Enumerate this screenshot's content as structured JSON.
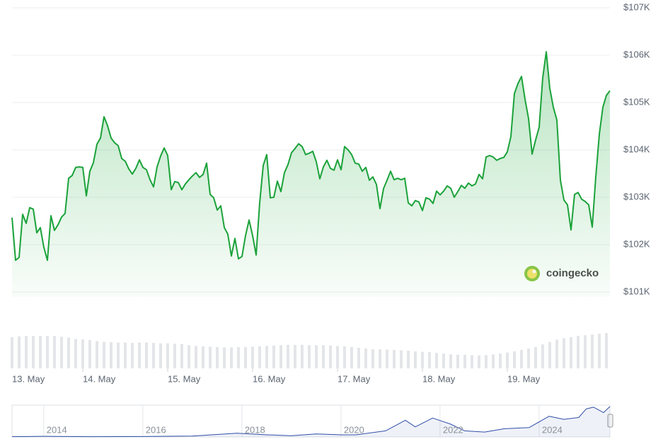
{
  "chart_data": [
    {
      "type": "line",
      "watermark": "coingecko",
      "color": "#1ba23a",
      "fill": "#34b24e",
      "grid": true,
      "xlim": [
        4,
        173
      ],
      "xticks": [
        {
          "value": 0,
          "label": "13. May"
        },
        {
          "value": 24,
          "label": "14. May"
        },
        {
          "value": 48,
          "label": "15. May"
        },
        {
          "value": 72,
          "label": "16. May"
        },
        {
          "value": 96,
          "label": "17. May"
        },
        {
          "value": 120,
          "label": "18. May"
        },
        {
          "value": 144,
          "label": "19. May"
        }
      ],
      "ylim": [
        101000,
        107000
      ],
      "yticks": [
        {
          "value": 101000,
          "label": "$101K"
        },
        {
          "value": 102000,
          "label": "$102K"
        },
        {
          "value": 103000,
          "label": "$103K"
        },
        {
          "value": 104000,
          "label": "$104K"
        },
        {
          "value": 105000,
          "label": "$105K"
        },
        {
          "value": 106000,
          "label": "$106K"
        },
        {
          "value": 107000,
          "label": "$107K"
        }
      ],
      "x": [
        4,
        5,
        6,
        7,
        8,
        9,
        10,
        11,
        12,
        13,
        14,
        15,
        16,
        17,
        18,
        19,
        20,
        21,
        22,
        23,
        24,
        25,
        26,
        27,
        28,
        29,
        30,
        31,
        32,
        33,
        34,
        35,
        36,
        37,
        38,
        39,
        40,
        41,
        42,
        43,
        44,
        45,
        46,
        47,
        48,
        49,
        50,
        51,
        52,
        53,
        54,
        55,
        56,
        57,
        58,
        59,
        60,
        61,
        62,
        63,
        64,
        65,
        66,
        67,
        68,
        69,
        70,
        71,
        72,
        73,
        74,
        75,
        76,
        77,
        78,
        79,
        80,
        81,
        82,
        83,
        84,
        85,
        86,
        87,
        88,
        89,
        90,
        91,
        92,
        93,
        94,
        95,
        96,
        97,
        98,
        99,
        100,
        101,
        102,
        103,
        104,
        105,
        106,
        107,
        108,
        109,
        110,
        111,
        112,
        113,
        114,
        115,
        116,
        117,
        118,
        119,
        120,
        121,
        122,
        123,
        124,
        125,
        126,
        127,
        128,
        129,
        130,
        131,
        132,
        133,
        134,
        135,
        136,
        137,
        138,
        139,
        140,
        141,
        142,
        143,
        144,
        145,
        146,
        147,
        148,
        149,
        150,
        151,
        152,
        153,
        154,
        155,
        156,
        157,
        158,
        159,
        160,
        161,
        162,
        163,
        164,
        165,
        166,
        167,
        168,
        169,
        170,
        171,
        172,
        173
      ],
      "values": [
        102570,
        101670,
        101730,
        102640,
        102450,
        102780,
        102750,
        102250,
        102360,
        101940,
        101670,
        102610,
        102300,
        102420,
        102580,
        102660,
        103400,
        103460,
        103630,
        103640,
        103630,
        103030,
        103550,
        103730,
        104120,
        104250,
        104700,
        104510,
        104250,
        104150,
        104090,
        103820,
        103760,
        103600,
        103490,
        103610,
        103790,
        103630,
        103580,
        103370,
        103220,
        103640,
        103870,
        104040,
        103880,
        103160,
        103330,
        103310,
        103160,
        103280,
        103370,
        103450,
        103520,
        103420,
        103480,
        103720,
        103060,
        102990,
        102730,
        102820,
        102360,
        102220,
        101760,
        102130,
        101700,
        101750,
        102190,
        102520,
        102190,
        101780,
        102880,
        103670,
        103900,
        102990,
        103000,
        103340,
        103120,
        103520,
        103690,
        103940,
        104030,
        104130,
        104070,
        103900,
        103930,
        103970,
        103750,
        103390,
        103640,
        103780,
        103610,
        103570,
        103790,
        103580,
        104070,
        104000,
        103900,
        103720,
        103700,
        103550,
        103630,
        103360,
        103430,
        103270,
        102760,
        103180,
        103360,
        103550,
        103370,
        103400,
        103370,
        103400,
        102880,
        102820,
        102930,
        102900,
        102720,
        102990,
        102960,
        102870,
        103130,
        103050,
        103130,
        103240,
        103190,
        103000,
        103120,
        103250,
        103190,
        103300,
        103240,
        103280,
        103480,
        103390,
        103850,
        103880,
        103850,
        103780,
        103820,
        103840,
        103960,
        104280,
        105190,
        105400,
        105550,
        105070,
        104660,
        103910,
        104210,
        104480,
        105520,
        106070,
        105300,
        104900,
        104630,
        103360,
        102940,
        102840,
        102310,
        103060,
        103100,
        102960,
        102910,
        102840,
        102370,
        103430,
        104330,
        104900,
        105150,
        105250
      ]
    },
    {
      "type": "bar",
      "color": "#e3e5e8",
      "xlim": [
        4,
        173
      ],
      "ylim": [
        0,
        100
      ],
      "x": [
        4,
        6,
        8,
        10,
        12,
        14,
        16,
        18,
        20,
        22,
        24,
        26,
        28,
        30,
        32,
        34,
        36,
        38,
        40,
        42,
        44,
        46,
        48,
        50,
        52,
        54,
        56,
        58,
        60,
        62,
        64,
        66,
        68,
        70,
        72,
        74,
        76,
        78,
        80,
        82,
        84,
        86,
        88,
        90,
        92,
        94,
        96,
        98,
        100,
        102,
        104,
        106,
        108,
        110,
        112,
        114,
        116,
        118,
        120,
        122,
        124,
        126,
        128,
        130,
        132,
        134,
        136,
        138,
        140,
        142,
        144,
        146,
        148,
        150,
        152,
        154,
        156,
        158,
        160,
        162,
        164,
        166,
        168,
        170,
        172
      ],
      "values": [
        85,
        87,
        88,
        88,
        88,
        88,
        88,
        86,
        84,
        80,
        79,
        77,
        74,
        72,
        71,
        70,
        70,
        69,
        70,
        70,
        69,
        68,
        68,
        67,
        66,
        63,
        61,
        60,
        59,
        58,
        57,
        57,
        58,
        58,
        59,
        60,
        61,
        62,
        63,
        64,
        64,
        64,
        63,
        63,
        63,
        62,
        61,
        60,
        58,
        56,
        54,
        52,
        52,
        51,
        50,
        49,
        48,
        46,
        45,
        44,
        42,
        40,
        38,
        37,
        37,
        36,
        35,
        36,
        38,
        40,
        43,
        46,
        50,
        54,
        58,
        65,
        72,
        78,
        82,
        85,
        88,
        90,
        92,
        94,
        96
      ]
    },
    {
      "type": "line",
      "color": "#2f4fa8",
      "xlim": [
        2013.36,
        2025.43
      ],
      "ylim": [
        0,
        100
      ],
      "xticks": [
        2014,
        2016,
        2018,
        2020,
        2022,
        2024
      ],
      "x": [
        2013.36,
        2014,
        2015,
        2016,
        2017,
        2017.9,
        2018.5,
        2019,
        2019.5,
        2020,
        2020.3,
        2020.9,
        2021.3,
        2021.5,
        2021.85,
        2022.2,
        2022.5,
        2022.9,
        2023.3,
        2023.8,
        2024.2,
        2024.5,
        2024.8,
        2024.95,
        2025.1,
        2025.3,
        2025.43
      ],
      "values": [
        1,
        2,
        1,
        1.5,
        3,
        12,
        7,
        4,
        10,
        7,
        7,
        20,
        55,
        33,
        62,
        43,
        20,
        16,
        27,
        31,
        68,
        58,
        64,
        92,
        98,
        80,
        100
      ]
    }
  ]
}
